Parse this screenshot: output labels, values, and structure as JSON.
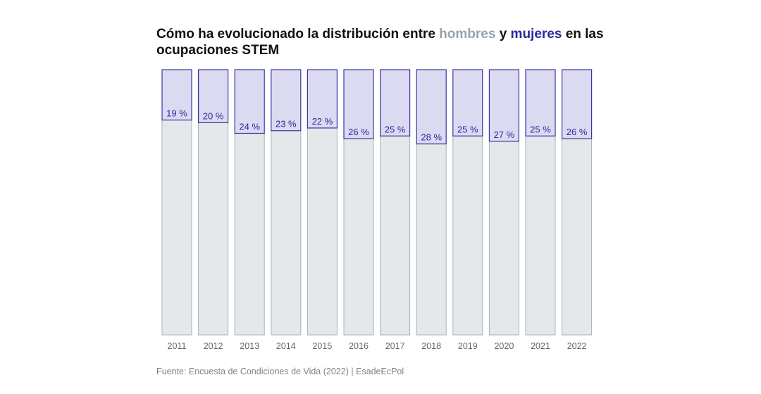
{
  "chart_data": {
    "type": "bar",
    "stacked": true,
    "title_parts": [
      "Cómo ha evolucionado la distribución entre ",
      "hombres",
      " y ",
      "mujeres",
      " en las ocupaciones STEM"
    ],
    "categories": [
      "2011",
      "2012",
      "2013",
      "2014",
      "2015",
      "2016",
      "2017",
      "2018",
      "2019",
      "2020",
      "2021",
      "2022"
    ],
    "series": [
      {
        "name": "mujeres",
        "values": [
          19,
          20,
          24,
          23,
          22,
          26,
          25,
          28,
          25,
          27,
          25,
          26
        ]
      },
      {
        "name": "hombres",
        "values": [
          81,
          80,
          76,
          77,
          78,
          74,
          75,
          72,
          75,
          73,
          75,
          74
        ]
      }
    ],
    "data_labels": [
      "19 %",
      "20 %",
      "24 %",
      "23 %",
      "22 %",
      "26 %",
      "25 %",
      "28 %",
      "25 %",
      "27 %",
      "25 %",
      "26 %"
    ],
    "ylim": [
      0,
      100
    ],
    "grid": false,
    "colors": {
      "mujeres_fill": "#dcdaf0",
      "mujeres_border": "#3a35a6",
      "hombres_fill": "#e5e8ea",
      "hombres_border": "#a8b0b7",
      "label": "#2b2a9c"
    }
  },
  "source": "Fuente: Encuesta de Condiciones de Vida (2022) | EsadeEcPol"
}
